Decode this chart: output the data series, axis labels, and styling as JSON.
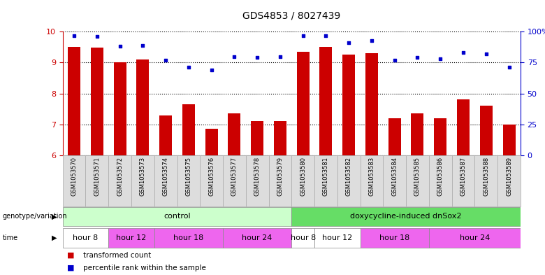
{
  "title": "GDS4853 / 8027439",
  "samples": [
    "GSM1053570",
    "GSM1053571",
    "GSM1053572",
    "GSM1053573",
    "GSM1053574",
    "GSM1053575",
    "GSM1053576",
    "GSM1053577",
    "GSM1053578",
    "GSM1053579",
    "GSM1053580",
    "GSM1053581",
    "GSM1053582",
    "GSM1053583",
    "GSM1053584",
    "GSM1053585",
    "GSM1053586",
    "GSM1053587",
    "GSM1053588",
    "GSM1053589"
  ],
  "bar_values": [
    9.5,
    9.48,
    9.0,
    9.1,
    7.3,
    7.65,
    6.85,
    7.35,
    7.1,
    7.1,
    9.35,
    9.5,
    9.25,
    9.3,
    7.2,
    7.35,
    7.2,
    7.8,
    7.6,
    6.99
  ],
  "dot_values": [
    97,
    96,
    88,
    89,
    77,
    71,
    69,
    80,
    79,
    80,
    97,
    97,
    91,
    93,
    77,
    79,
    78,
    83,
    82,
    71
  ],
  "ylim_left": [
    6,
    10
  ],
  "ylim_right": [
    0,
    100
  ],
  "yticks_left": [
    6,
    7,
    8,
    9,
    10
  ],
  "yticks_right": [
    0,
    25,
    50,
    75,
    100
  ],
  "bar_color": "#cc0000",
  "dot_color": "#0000cc",
  "bar_bottom": 6,
  "genotype_groups": [
    {
      "label": "control",
      "start": 0,
      "end": 9,
      "color": "#ccffcc"
    },
    {
      "label": "doxycycline-induced dnSox2",
      "start": 10,
      "end": 19,
      "color": "#66dd66"
    }
  ],
  "time_groups": [
    {
      "label": "hour 8",
      "start": 0,
      "end": 1,
      "color": "#ffffff"
    },
    {
      "label": "hour 12",
      "start": 2,
      "end": 3,
      "color": "#ee66ee"
    },
    {
      "label": "hour 18",
      "start": 4,
      "end": 6,
      "color": "#ee66ee"
    },
    {
      "label": "hour 24",
      "start": 7,
      "end": 9,
      "color": "#ee66ee"
    },
    {
      "label": "hour 8",
      "start": 10,
      "end": 10,
      "color": "#ffffff"
    },
    {
      "label": "hour 12",
      "start": 11,
      "end": 12,
      "color": "#ffffff"
    },
    {
      "label": "hour 18",
      "start": 13,
      "end": 15,
      "color": "#ee66ee"
    },
    {
      "label": "hour 24",
      "start": 16,
      "end": 19,
      "color": "#ee66ee"
    }
  ],
  "legend_items": [
    {
      "label": "transformed count",
      "color": "#cc0000"
    },
    {
      "label": "percentile rank within the sample",
      "color": "#0000cc"
    }
  ],
  "genotype_label": "genotype/variation",
  "time_label": "time",
  "left_axis_color": "#cc0000",
  "right_axis_color": "#0000cc",
  "xlabels_bg": "#dddddd",
  "cell_border": "#aaaaaa"
}
